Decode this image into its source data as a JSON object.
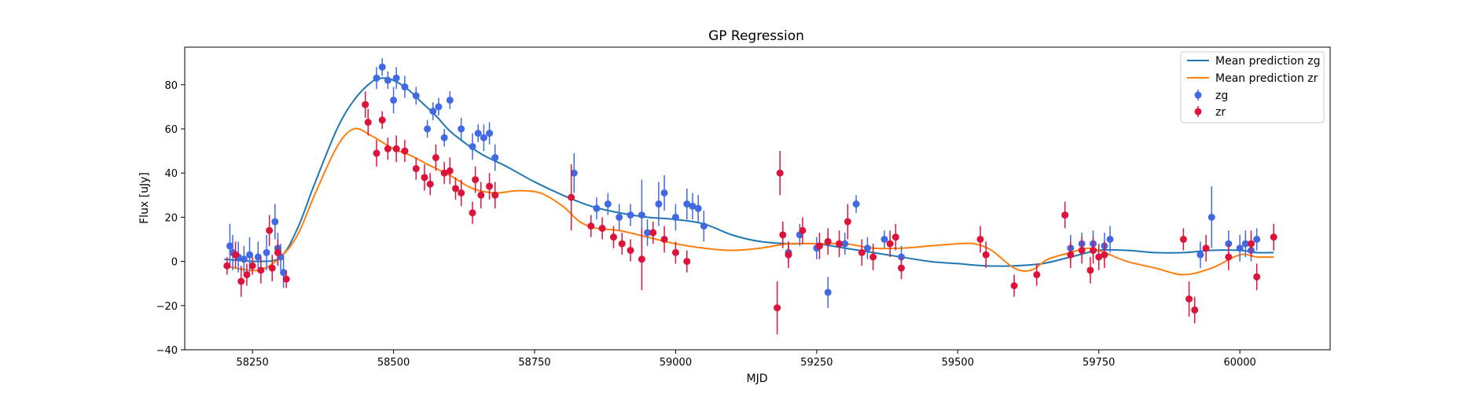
{
  "chart_data": {
    "type": "scatter",
    "title": "GP Regression",
    "xlabel": "MJD",
    "ylabel": "Flux [uJy]",
    "xlim": [
      58130,
      60160
    ],
    "ylim": [
      -40,
      97
    ],
    "xticks": [
      58250,
      58500,
      58750,
      59000,
      59250,
      59500,
      59750,
      60000
    ],
    "yticks": [
      -40,
      -20,
      0,
      20,
      40,
      60,
      80
    ],
    "grid": false,
    "legend_position": "top-right",
    "legend": [
      "Mean prediction zg",
      "Mean prediction zr",
      "zg",
      "zr"
    ],
    "mean_curves": [
      {
        "name": "Mean prediction zg",
        "color": "#1f77b4",
        "x": [
          58200,
          58260,
          58300,
          58330,
          58360,
          58400,
          58430,
          58460,
          58480,
          58500,
          58525,
          58550,
          58575,
          58600,
          58630,
          58660,
          58700,
          58750,
          58800,
          58850,
          58900,
          58950,
          59000,
          59050,
          59100,
          59150,
          59200,
          59250,
          59300,
          59350,
          59400,
          59450,
          59500,
          59550,
          59600,
          59650,
          59700,
          59750,
          59800,
          59850,
          59900,
          59950,
          60000,
          60030,
          60060
        ],
        "y": [
          1,
          0,
          2,
          15,
          35,
          60,
          73,
          81,
          83,
          82,
          78,
          72,
          66,
          59,
          53,
          48,
          43,
          36,
          30,
          25,
          22,
          20,
          19,
          17,
          12,
          9,
          8,
          8,
          6,
          4,
          2,
          0,
          -1,
          -2,
          -2,
          -1,
          2,
          5,
          5,
          4,
          4,
          5,
          5,
          4,
          4
        ]
      },
      {
        "name": "Mean prediction zr",
        "color": "#ff7f0e",
        "x": [
          58200,
          58260,
          58300,
          58330,
          58360,
          58400,
          58430,
          58460,
          58500,
          58530,
          58560,
          58600,
          58640,
          58680,
          58720,
          58760,
          58800,
          58830,
          58860,
          58900,
          58950,
          59000,
          59050,
          59100,
          59150,
          59200,
          59250,
          59300,
          59350,
          59400,
          59450,
          59500,
          59530,
          59560,
          59600,
          59630,
          59660,
          59700,
          59730,
          59760,
          59800,
          59850,
          59900,
          59950,
          60000,
          60030,
          60060
        ],
        "y": [
          -2,
          -4,
          2,
          12,
          30,
          52,
          60,
          57,
          51,
          48,
          44,
          39,
          33,
          31,
          32,
          31,
          25,
          18,
          15,
          14,
          11,
          8,
          6,
          5,
          6,
          8,
          8,
          8,
          6,
          6,
          7,
          8,
          8,
          5,
          -3,
          -4,
          1,
          4,
          6,
          4,
          0,
          -3,
          -6,
          -3,
          3,
          2,
          2
        ]
      }
    ],
    "series": [
      {
        "name": "zg",
        "color": "#4169e1",
        "x": [
          58210,
          58215,
          58225,
          58235,
          58245,
          58260,
          58275,
          58290,
          58295,
          58300,
          58305,
          58470,
          58480,
          58490,
          58500,
          58505,
          58520,
          58540,
          58560,
          58570,
          58580,
          58590,
          58600,
          58620,
          58640,
          58650,
          58660,
          58670,
          58680,
          58820,
          58860,
          58880,
          58900,
          58920,
          58940,
          58950,
          58970,
          58980,
          59000,
          59020,
          59030,
          59040,
          59050,
          59200,
          59220,
          59250,
          59270,
          59300,
          59320,
          59340,
          59370,
          59400,
          59700,
          59720,
          59740,
          59760,
          59770,
          59930,
          59950,
          59980,
          60000,
          60010,
          60020,
          60030
        ],
        "y": [
          7,
          4,
          2,
          1,
          3,
          2,
          4,
          18,
          6,
          2,
          -5,
          83,
          88,
          82,
          73,
          83,
          79,
          75,
          60,
          68,
          70,
          56,
          73,
          60,
          52,
          58,
          56,
          58,
          47,
          40,
          24,
          26,
          20,
          21,
          21,
          13,
          26,
          31,
          20,
          26,
          25,
          24,
          16,
          4,
          12,
          6,
          -14,
          8,
          26,
          6,
          10,
          2,
          6,
          8,
          8,
          7,
          10,
          3,
          20,
          8,
          6,
          8,
          5,
          10
        ],
        "yerr": [
          10,
          8,
          7,
          6,
          8,
          7,
          8,
          8,
          7,
          6,
          7,
          5,
          4,
          4,
          6,
          5,
          5,
          4,
          4,
          4,
          4,
          4,
          4,
          5,
          6,
          4,
          6,
          5,
          6,
          9,
          5,
          5,
          6,
          5,
          16,
          6,
          10,
          8,
          6,
          7,
          6,
          6,
          7,
          5,
          5,
          5,
          7,
          5,
          4,
          5,
          4,
          5,
          6,
          5,
          6,
          6,
          6,
          6,
          14,
          6,
          6,
          6,
          5,
          5
        ]
      },
      {
        "name": "zr",
        "color": "#dc143c",
        "x": [
          58205,
          58220,
          58230,
          58240,
          58250,
          58265,
          58280,
          58285,
          58295,
          58310,
          58450,
          58455,
          58470,
          58480,
          58490,
          58505,
          58520,
          58540,
          58555,
          58565,
          58575,
          58590,
          58600,
          58610,
          58620,
          58640,
          58645,
          58655,
          58670,
          58680,
          58815,
          58850,
          58870,
          58890,
          58905,
          58920,
          58940,
          58960,
          58980,
          59000,
          59020,
          59180,
          59185,
          59190,
          59200,
          59225,
          59255,
          59270,
          59290,
          59305,
          59330,
          59350,
          59380,
          59390,
          59400,
          59540,
          59550,
          59600,
          59640,
          59690,
          59700,
          59720,
          59735,
          59740,
          59750,
          59760,
          59900,
          59910,
          59920,
          59940,
          59980,
          60020,
          60030,
          60060
        ],
        "y": [
          -2,
          3,
          -9,
          -6,
          -2,
          -4,
          14,
          -3,
          4,
          -8,
          71,
          63,
          49,
          64,
          51,
          51,
          50,
          42,
          38,
          35,
          47,
          40,
          41,
          33,
          31,
          22,
          37,
          30,
          34,
          30,
          29,
          16,
          15,
          11,
          8,
          5,
          1,
          13,
          10,
          4,
          0,
          -21,
          40,
          12,
          3,
          14,
          7,
          9,
          8,
          18,
          4,
          2,
          8,
          11,
          -3,
          10,
          3,
          -11,
          -6,
          21,
          3,
          5,
          -4,
          5,
          2,
          3,
          10,
          -17,
          -22,
          6,
          2,
          8,
          -7,
          11
        ],
        "yerr": [
          4,
          6,
          7,
          5,
          4,
          6,
          7,
          6,
          6,
          4,
          6,
          6,
          6,
          4,
          5,
          6,
          5,
          5,
          6,
          5,
          6,
          5,
          6,
          5,
          6,
          5,
          6,
          6,
          6,
          6,
          15,
          5,
          5,
          5,
          5,
          5,
          14,
          5,
          6,
          5,
          5,
          12,
          10,
          6,
          6,
          6,
          6,
          6,
          6,
          8,
          6,
          6,
          6,
          6,
          5,
          6,
          6,
          5,
          5,
          6,
          6,
          6,
          6,
          6,
          6,
          6,
          5,
          8,
          6,
          6,
          6,
          6,
          6,
          6
        ]
      }
    ]
  }
}
